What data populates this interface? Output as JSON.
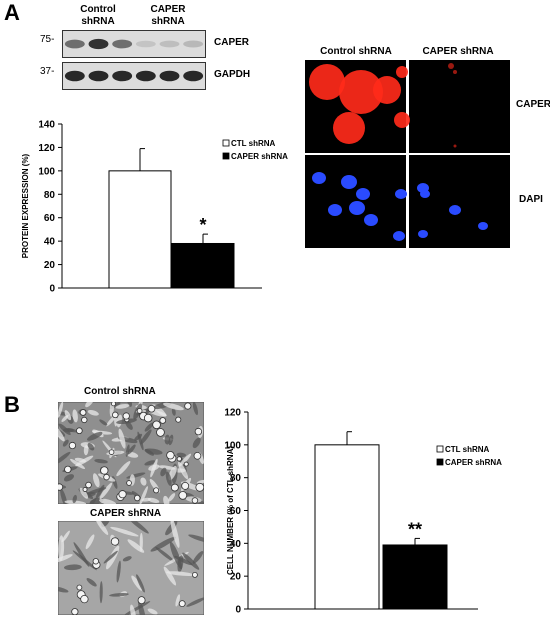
{
  "panels": [
    {
      "letter": "A"
    },
    {
      "letter": "B"
    }
  ],
  "western_blot": {
    "groups": [
      "Control\nshRNA",
      "CAPER\nshRNA"
    ],
    "rows": [
      {
        "marker": "75-",
        "protein": "CAPER",
        "intensities": [
          0.55,
          0.85,
          0.55,
          0.12,
          0.15,
          0.18
        ]
      },
      {
        "marker": "37-",
        "protein": "GAPDH",
        "intensities": [
          0.9,
          0.9,
          0.9,
          0.9,
          0.9,
          0.9
        ]
      }
    ]
  },
  "immunofluorescence": {
    "columns": [
      "Control shRNA",
      "CAPER shRNA"
    ],
    "rows": [
      "CAPER",
      "DAPI"
    ],
    "colors": {
      "caper": "#ff2a1a",
      "dapi": "#2a4bff",
      "background": "#000000"
    }
  },
  "micrographs": {
    "labels": [
      "Control shRNA",
      "CAPER shRNA"
    ]
  },
  "chart_data": [
    {
      "type": "bar",
      "categories": [
        "CTL shRNA",
        "CAPER shRNA"
      ],
      "values": [
        100,
        38
      ],
      "errors": [
        19,
        8
      ],
      "significance": [
        "",
        "*"
      ],
      "ylabel": "PROTEIN EXPRESSION (%)",
      "ylim": [
        0,
        140
      ],
      "yticks": [
        0,
        20,
        40,
        60,
        80,
        100,
        120,
        140
      ],
      "legend": [
        "CTL shRNA",
        "CAPER shRNA"
      ],
      "legend_position": "top-right",
      "fills": [
        "#ffffff",
        "#000000"
      ]
    },
    {
      "type": "bar",
      "categories": [
        "CTL shRNA",
        "CAPER shRNA"
      ],
      "values": [
        100,
        39
      ],
      "errors": [
        8,
        4
      ],
      "significance": [
        "",
        "**"
      ],
      "ylabel": "CELL NUMBER  (% of CTL shRNA)",
      "ylim": [
        0,
        120
      ],
      "yticks": [
        0,
        20,
        40,
        60,
        80,
        100,
        120
      ],
      "legend": [
        "CTL shRNA",
        "CAPER shRNA"
      ],
      "legend_position": "top-right",
      "fills": [
        "#ffffff",
        "#000000"
      ]
    }
  ]
}
